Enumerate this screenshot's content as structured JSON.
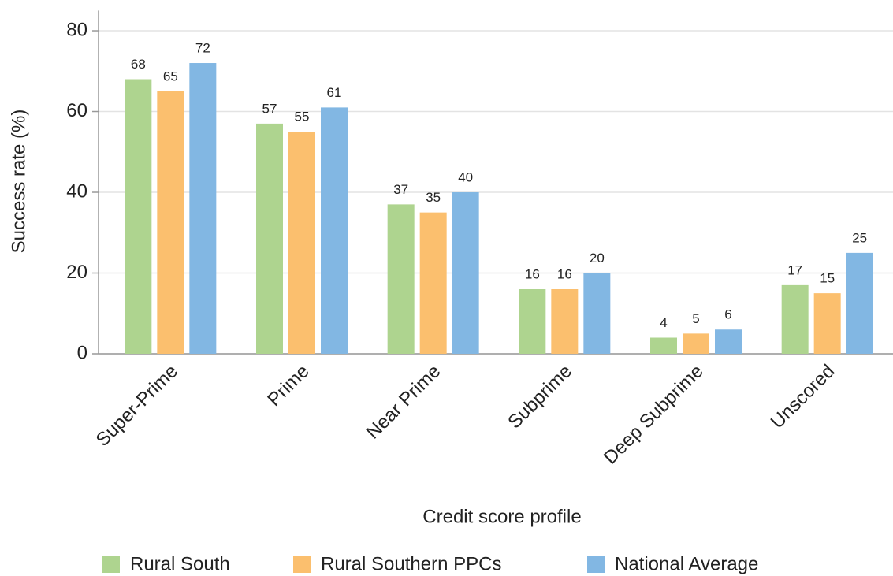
{
  "chart_data": {
    "type": "bar",
    "y_label": "Success rate (%)",
    "x_label": "Credit score profile",
    "categories": [
      "Super-Prime",
      "Prime",
      "Near Prime",
      "Subprime",
      "Deep Subprime",
      "Unscored"
    ],
    "series": [
      {
        "name": "Rural South",
        "color": "#aed48f",
        "values": [
          68,
          57,
          37,
          16,
          4,
          17
        ]
      },
      {
        "name": "Rural Southern PPCs",
        "color": "#fbbf6e",
        "values": [
          65,
          55,
          35,
          16,
          5,
          15
        ]
      },
      {
        "name": "National Average",
        "color": "#82b7e3",
        "values": [
          72,
          61,
          40,
          20,
          6,
          25
        ]
      }
    ],
    "ylim": [
      0,
      85
    ],
    "yticks": [
      0,
      20,
      40,
      60,
      80
    ],
    "grid": true,
    "legend": "bottom"
  }
}
